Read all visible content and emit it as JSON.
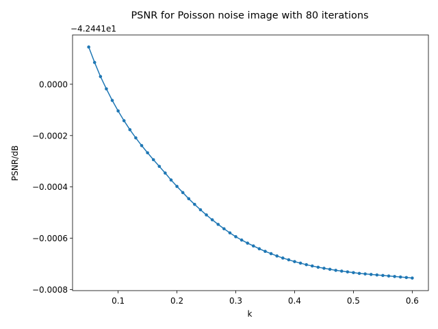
{
  "chart_data": {
    "type": "line",
    "title": "PSNR for Poisson noise image with 80 iterations",
    "xlabel": "k",
    "ylabel": "PSNR/dB",
    "y_offset_label": "−4.2441e1",
    "y_offset": -42.441,
    "xlim": [
      0.0225,
      0.6275
    ],
    "ylim": [
      -0.000804,
      0.000192
    ],
    "x_ticks": [
      0.1,
      0.2,
      0.3,
      0.4,
      0.5,
      0.6
    ],
    "x_tick_labels": [
      "0.1",
      "0.2",
      "0.3",
      "0.4",
      "0.5",
      "0.6"
    ],
    "y_ticks": [
      0.0,
      -0.0002,
      -0.0004,
      -0.0006,
      -0.0008
    ],
    "y_tick_labels": [
      "0.0000",
      "−0.0002",
      "−0.0004",
      "−0.0006",
      "−0.0008"
    ],
    "grid": false,
    "marker": "circle",
    "color": "#1f77b4",
    "series": [
      {
        "x": [
          0.05,
          0.06,
          0.07,
          0.08,
          0.09,
          0.1,
          0.11,
          0.12,
          0.13,
          0.14,
          0.15,
          0.16,
          0.17,
          0.18,
          0.19,
          0.2,
          0.21,
          0.22,
          0.23,
          0.24,
          0.25,
          0.26,
          0.27,
          0.28,
          0.29,
          0.3,
          0.31,
          0.32,
          0.33,
          0.34,
          0.35,
          0.36,
          0.37,
          0.38,
          0.39,
          0.4,
          0.41,
          0.42,
          0.43,
          0.44,
          0.45,
          0.46,
          0.47,
          0.48,
          0.49,
          0.5,
          0.51,
          0.52,
          0.53,
          0.54,
          0.55,
          0.56,
          0.57,
          0.58,
          0.59,
          0.6
        ],
        "y": [
          0.000145,
          8.5e-05,
          3e-05,
          -1.8e-05,
          -6.3e-05,
          -0.000104,
          -0.000142,
          -0.000177,
          -0.000209,
          -0.000239,
          -0.000267,
          -0.000294,
          -0.00032,
          -0.000346,
          -0.000373,
          -0.000398,
          -0.000422,
          -0.000446,
          -0.000468,
          -0.000489,
          -0.000509,
          -0.000528,
          -0.000546,
          -0.000563,
          -0.000579,
          -0.000594,
          -0.000607,
          -0.000619,
          -0.00063,
          -0.000641,
          -0.000651,
          -0.00066,
          -0.000669,
          -0.000677,
          -0.000684,
          -0.000691,
          -0.000697,
          -0.000703,
          -0.000708,
          -0.000713,
          -0.000717,
          -0.000721,
          -0.000725,
          -0.000728,
          -0.000731,
          -0.000734,
          -0.000737,
          -0.000739,
          -0.000741,
          -0.000743,
          -0.000745,
          -0.000747,
          -0.000749,
          -0.000751,
          -0.000753,
          -0.000755
        ]
      }
    ]
  }
}
